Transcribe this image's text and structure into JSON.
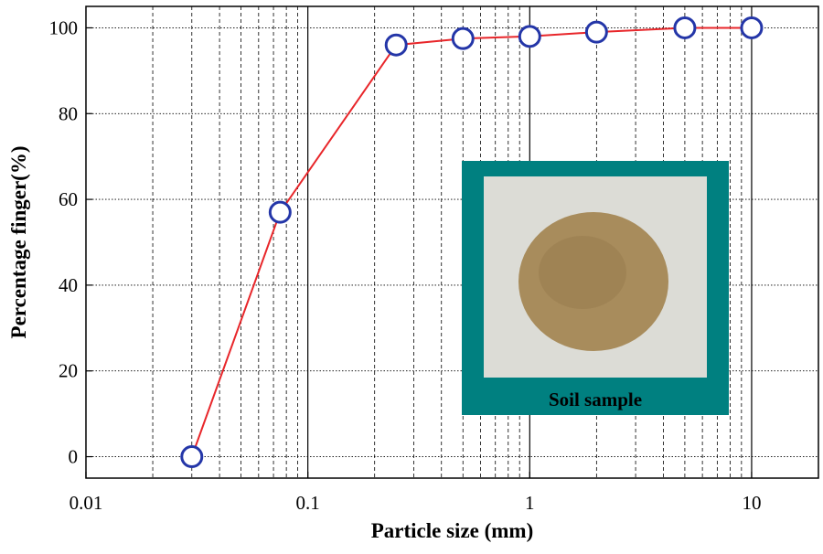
{
  "chart_data": {
    "type": "scatter",
    "title": "",
    "xlabel": "Particle size (mm)",
    "ylabel": "Percentage finger(%)",
    "x_scale": "log",
    "xlim": [
      0.01,
      20
    ],
    "ylim": [
      -5,
      105
    ],
    "x_ticks": [
      {
        "value": 0.01,
        "label": "0.01"
      },
      {
        "value": 0.1,
        "label": "0.1"
      },
      {
        "value": 1,
        "label": "1"
      },
      {
        "value": 10,
        "label": "10"
      }
    ],
    "y_ticks": [
      {
        "value": 0,
        "label": "0"
      },
      {
        "value": 20,
        "label": "20"
      },
      {
        "value": 40,
        "label": "40"
      },
      {
        "value": 60,
        "label": "60"
      },
      {
        "value": 80,
        "label": "80"
      },
      {
        "value": 100,
        "label": "100"
      }
    ],
    "grid": "dashed minor lines, dotted horizontal lines, solid vertical lines at decades",
    "series": [
      {
        "x": [
          0.03,
          0.075,
          0.25,
          0.5,
          1,
          2,
          5,
          10
        ],
        "y": [
          0,
          57,
          96,
          97.5,
          98,
          99,
          100,
          100
        ]
      }
    ],
    "line_color": "#e8262a",
    "marker_edge_color": "#2436a8",
    "marker_fill_color": "#ffffff",
    "inset": {
      "label": "Soil sample",
      "frame_color": "#008080",
      "background_color": "#dcdcd6",
      "soil_color": "#a88c5c"
    }
  }
}
